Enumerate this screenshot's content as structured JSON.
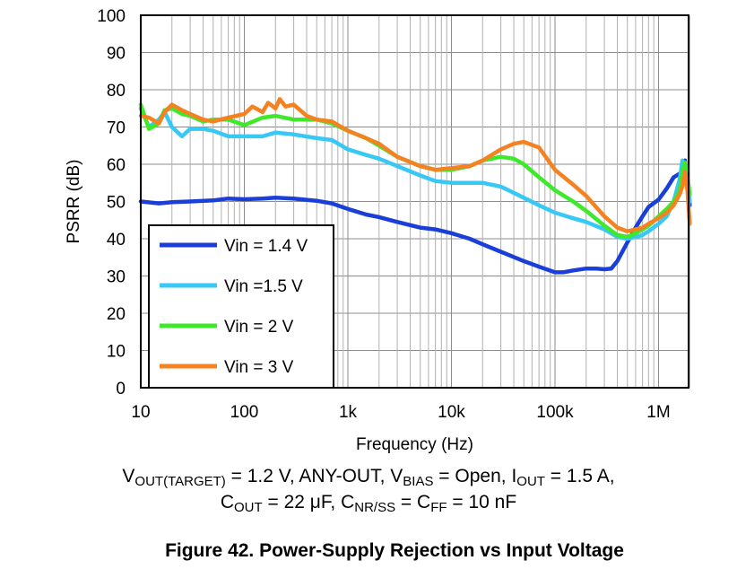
{
  "chart_data": {
    "type": "line",
    "title": "",
    "xlabel": "Frequency (Hz)",
    "ylabel": "PSRR (dB)",
    "xscale": "log",
    "xlim": [
      10,
      2000000
    ],
    "ylim": [
      0,
      100
    ],
    "x_ticks": [
      10,
      100,
      1000,
      10000,
      100000,
      1000000
    ],
    "x_tick_labels": [
      "10",
      "100",
      "1k",
      "10k",
      "100k",
      "1M"
    ],
    "y_ticks": [
      0,
      10,
      20,
      30,
      40,
      50,
      60,
      70,
      80,
      90,
      100
    ],
    "y_tick_labels": [
      "0",
      "10",
      "20",
      "30",
      "40",
      "50",
      "60",
      "70",
      "80",
      "90",
      "100"
    ],
    "grid": true,
    "legend_position": "bottom-left",
    "series": [
      {
        "name": "Vin = 1.4 V",
        "color": "#1a3fd9",
        "x": [
          10,
          15,
          20,
          30,
          50,
          70,
          100,
          150,
          200,
          300,
          500,
          700,
          1000,
          1500,
          2000,
          3000,
          5000,
          7000,
          10000,
          15000,
          20000,
          30000,
          50000,
          70000,
          100000,
          120000,
          150000,
          200000,
          250000,
          300000,
          350000,
          400000,
          500000,
          600000,
          700000,
          800000,
          1000000,
          1200000,
          1400000,
          1600000,
          1700000,
          1800000,
          1900000,
          2000000
        ],
        "y": [
          50,
          49.5,
          49.8,
          50,
          50.3,
          50.8,
          50.6,
          50.8,
          51,
          50.8,
          50.2,
          49.5,
          48,
          46.5,
          45.8,
          44.5,
          43,
          42.5,
          41.5,
          40,
          38.5,
          36.5,
          34,
          32.5,
          31,
          31,
          31.5,
          32,
          32,
          31.8,
          32,
          34,
          39,
          43,
          46,
          48.5,
          50.5,
          53.5,
          56.5,
          57.5,
          58,
          61,
          55,
          49
        ]
      },
      {
        "name": "Vin =1.5 V",
        "color": "#38c8f5",
        "x": [
          10,
          12,
          15,
          17,
          20,
          25,
          30,
          40,
          50,
          70,
          100,
          150,
          200,
          300,
          500,
          700,
          1000,
          1500,
          2000,
          3000,
          5000,
          7000,
          10000,
          15000,
          20000,
          30000,
          50000,
          70000,
          100000,
          150000,
          200000,
          300000,
          400000,
          500000,
          600000,
          700000,
          800000,
          1000000,
          1200000,
          1400000,
          1600000,
          1700000,
          1800000,
          1900000,
          2000000
        ],
        "y": [
          75,
          70,
          72,
          74,
          70,
          67.5,
          69.5,
          69.5,
          69,
          67.5,
          67.5,
          67.5,
          68.5,
          68,
          67,
          66.5,
          64,
          62.5,
          61.5,
          59.5,
          57,
          55.5,
          55,
          55,
          55,
          54,
          51,
          49,
          47,
          45.5,
          44.5,
          42.5,
          40.5,
          40,
          40.5,
          41,
          42,
          44,
          46,
          50,
          56,
          61,
          60,
          56,
          50
        ]
      },
      {
        "name": "Vin = 2 V",
        "color": "#3ee82a",
        "x": [
          10,
          12,
          15,
          17,
          20,
          25,
          30,
          40,
          50,
          70,
          100,
          150,
          200,
          300,
          500,
          700,
          1000,
          1500,
          2000,
          3000,
          5000,
          7000,
          10000,
          15000,
          20000,
          30000,
          40000,
          50000,
          70000,
          100000,
          150000,
          200000,
          300000,
          400000,
          500000,
          600000,
          700000,
          800000,
          1000000,
          1200000,
          1400000,
          1600000,
          1700000,
          1800000,
          1900000,
          2000000
        ],
        "y": [
          76,
          69.5,
          71,
          74.5,
          75,
          73.5,
          73,
          71.5,
          72,
          72,
          70.5,
          72.5,
          73,
          72,
          72,
          71,
          69,
          67,
          65,
          62,
          59.5,
          58.5,
          58.5,
          59.5,
          61,
          62,
          61.5,
          60,
          56.5,
          53,
          50,
          47.5,
          43.5,
          41,
          40.5,
          41.5,
          42.5,
          43.5,
          46,
          48,
          50,
          53,
          58,
          60.5,
          57,
          52
        ]
      },
      {
        "name": "Vin = 3 V",
        "color": "#f58220",
        "x": [
          10,
          12,
          15,
          17,
          20,
          25,
          30,
          40,
          50,
          70,
          100,
          120,
          150,
          170,
          200,
          220,
          250,
          300,
          400,
          500,
          700,
          1000,
          1500,
          2000,
          3000,
          5000,
          7000,
          10000,
          15000,
          20000,
          30000,
          40000,
          50000,
          70000,
          100000,
          150000,
          200000,
          300000,
          400000,
          500000,
          600000,
          700000,
          800000,
          1000000,
          1200000,
          1400000,
          1600000,
          1700000,
          1800000,
          1900000,
          2000000
        ],
        "y": [
          73,
          72.5,
          71,
          74,
          76,
          74.5,
          73.5,
          72,
          71.5,
          72.5,
          73.5,
          75.5,
          74,
          76.5,
          75,
          77.5,
          75.5,
          76,
          73,
          72,
          71.5,
          69,
          67,
          65.5,
          62,
          59.5,
          58.5,
          59,
          59.5,
          61,
          64,
          65.5,
          66,
          64.5,
          58.5,
          54.5,
          51.5,
          46,
          43,
          42,
          42.5,
          43,
          44,
          45.5,
          47,
          49,
          52,
          54,
          58,
          53,
          44
        ]
      }
    ]
  },
  "conditions": {
    "line1": {
      "vout": "V",
      "vout_sub": "OUT(TARGET)",
      "vout_rest": " = 1.2 V, ANY-OUT, ",
      "vbias": "V",
      "vbias_sub": "BIAS",
      "vbias_rest": " = Open, ",
      "iout": "I",
      "iout_sub": "OUT",
      "iout_rest": " = 1.5 A,"
    },
    "line2": {
      "cout": "C",
      "cout_sub": "OUT",
      "cout_rest": " = 22 μF, ",
      "cnr": "C",
      "cnr_sub": "NR/SS",
      "cnr_rest": " = ",
      "cff": "C",
      "cff_sub": "FF",
      "cff_rest": " = 10 nF"
    }
  },
  "figure_caption": "Figure 42. Power-Supply Rejection vs Input Voltage"
}
